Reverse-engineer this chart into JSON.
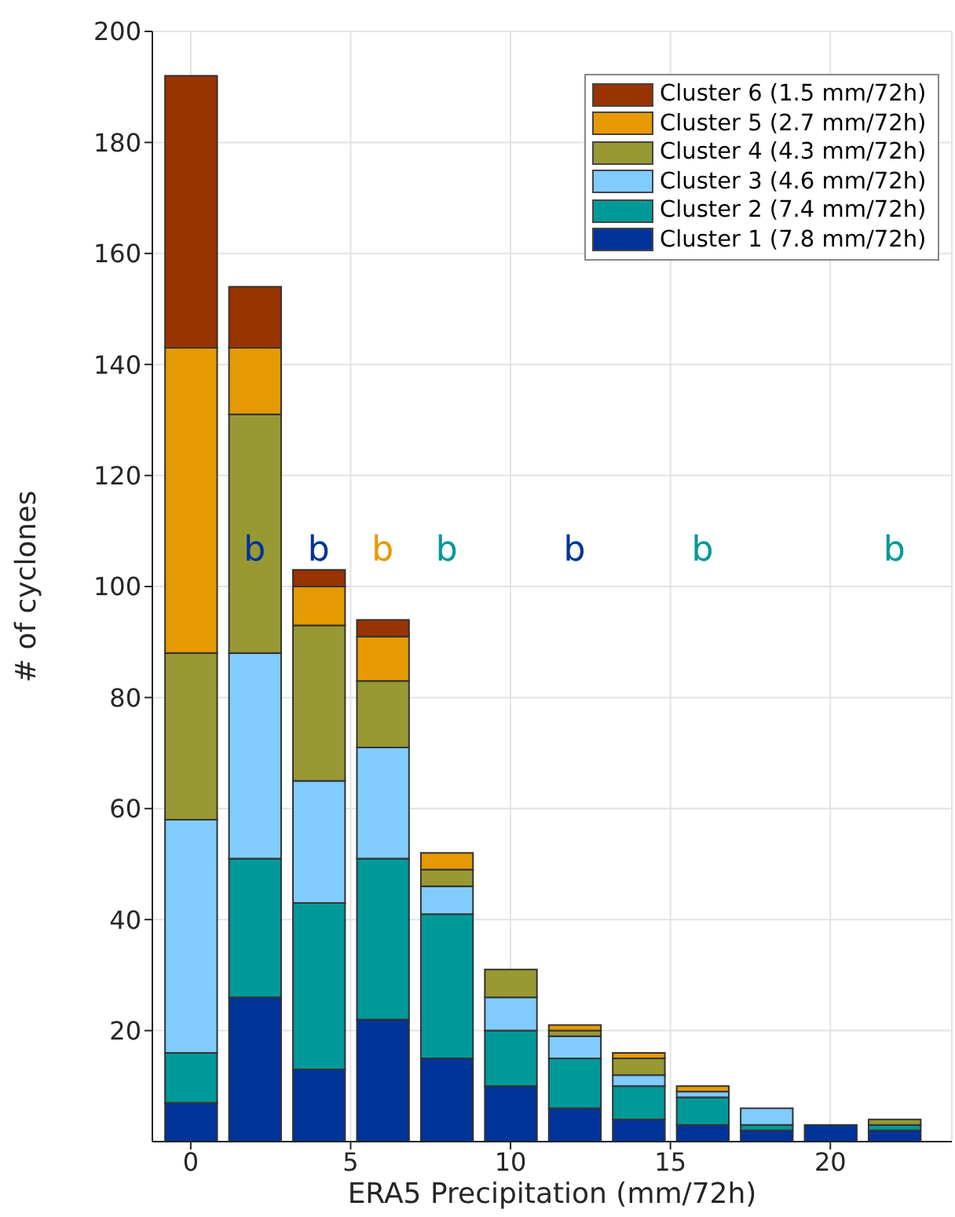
{
  "chart_data": {
    "type": "bar",
    "xlabel": "ERA5 Precipitation (mm/72h)",
    "ylabel": "# of cyclones",
    "x": [
      0,
      2,
      4,
      6,
      8,
      10,
      12,
      14,
      16,
      18,
      20,
      22
    ],
    "series": [
      {
        "name": "Cluster 1 (7.8 mm/72h)",
        "color": "#003399",
        "values": [
          7,
          26,
          13,
          22,
          15,
          10,
          6,
          4,
          3,
          2,
          3,
          2
        ]
      },
      {
        "name": "Cluster 2 (7.4 mm/72h)",
        "color": "#009999",
        "values": [
          9,
          25,
          30,
          29,
          26,
          10,
          9,
          6,
          5,
          1,
          0,
          1
        ]
      },
      {
        "name": "Cluster 3 (4.6 mm/72h)",
        "color": "#80ccff",
        "values": [
          42,
          37,
          22,
          20,
          5,
          6,
          4,
          2,
          1,
          3,
          0,
          0
        ]
      },
      {
        "name": "Cluster 4 (4.3 mm/72h)",
        "color": "#999933",
        "values": [
          30,
          43,
          28,
          12,
          3,
          5,
          1,
          3,
          0,
          0,
          0,
          1
        ]
      },
      {
        "name": "Cluster 5 (2.7 mm/72h)",
        "color": "#e69900",
        "values": [
          55,
          12,
          7,
          8,
          3,
          0,
          1,
          1,
          1,
          0,
          0,
          0
        ]
      },
      {
        "name": "Cluster 6 (1.5 mm/72h)",
        "color": "#993300",
        "values": [
          49,
          11,
          3,
          3,
          0,
          0,
          0,
          0,
          0,
          0,
          0,
          0
        ]
      }
    ],
    "stacked": true,
    "xlim": [
      -1.2,
      23.8
    ],
    "xticks": [
      0,
      5,
      10,
      15,
      20
    ],
    "ylim": [
      0,
      200
    ],
    "yticks": [
      20,
      40,
      60,
      80,
      100,
      120,
      140,
      160,
      180,
      200
    ],
    "grid": true,
    "legend": "top right",
    "annotations": [
      "b",
      "b",
      "b",
      "b",
      "b",
      "b",
      "b"
    ]
  }
}
